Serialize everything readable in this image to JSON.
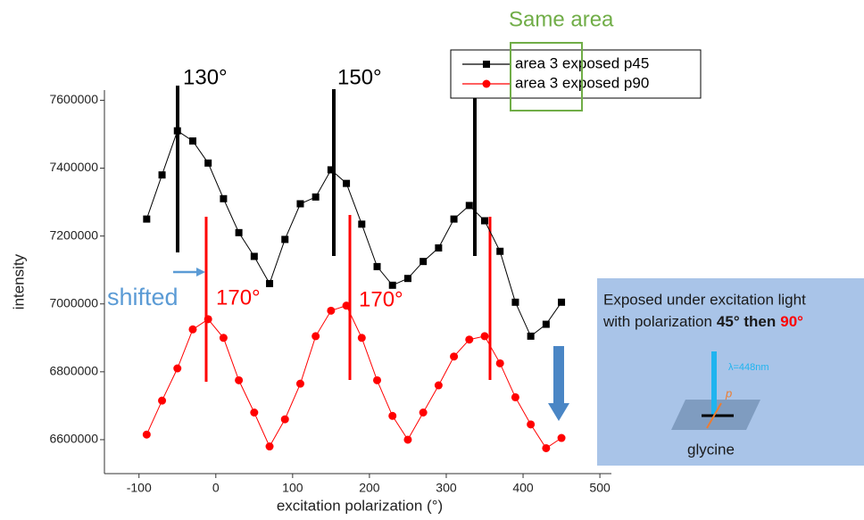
{
  "chart_data": {
    "type": "line",
    "x_label": "excitation polarization (°)",
    "y_label": "intensity",
    "x": [
      -90,
      -70,
      -50,
      -30,
      -10,
      10,
      30,
      50,
      70,
      90,
      110,
      130,
      150,
      170,
      190,
      210,
      230,
      250,
      270,
      290,
      310,
      330,
      350,
      370,
      390,
      410,
      430,
      450
    ],
    "series": [
      {
        "name": "area 3 exposed p45",
        "color": "#000000",
        "marker": "square",
        "values": [
          7250000,
          7380000,
          7510000,
          7480000,
          7415000,
          7310000,
          7210000,
          7140000,
          7060000,
          7190000,
          7295000,
          7315000,
          7395000,
          7355000,
          7235000,
          7110000,
          7055000,
          7075000,
          7125000,
          7165000,
          7250000,
          7290000,
          7245000,
          7155000,
          7005000,
          6905000,
          6940000,
          7005000
        ]
      },
      {
        "name": "area 3 exposed p90",
        "color": "#ff0000",
        "marker": "circle",
        "values": [
          6615000,
          6715000,
          6810000,
          6925000,
          6955000,
          6900000,
          6775000,
          6680000,
          6580000,
          6660000,
          6765000,
          6905000,
          6980000,
          6995000,
          6900000,
          6775000,
          6670000,
          6600000,
          6680000,
          6760000,
          6845000,
          6895000,
          6905000,
          6825000,
          6725000,
          6645000,
          6575000,
          6605000
        ]
      }
    ],
    "xlim": [
      -145,
      515
    ],
    "xticks": [
      -100,
      0,
      100,
      200,
      300,
      400,
      500
    ],
    "ylim": [
      6500000,
      7630000
    ],
    "yticks": [
      6600000,
      6800000,
      7000000,
      7200000,
      7400000,
      7600000
    ],
    "grid": false,
    "legend": "top-right",
    "annotations": {
      "peak_black_1": "130°",
      "peak_black_2": "150°",
      "peak_red_1": "170°",
      "peak_red_2": "170°",
      "shifted": "shifted",
      "same_area": "Same area"
    },
    "info_box": {
      "line1": "Exposed under excitation light",
      "line2_prefix": "with polarization",
      "line2_first": "45° then",
      "line2_second": "90°",
      "wavelength": "λ=448nm",
      "vector": "p",
      "sample": "glycine"
    }
  }
}
